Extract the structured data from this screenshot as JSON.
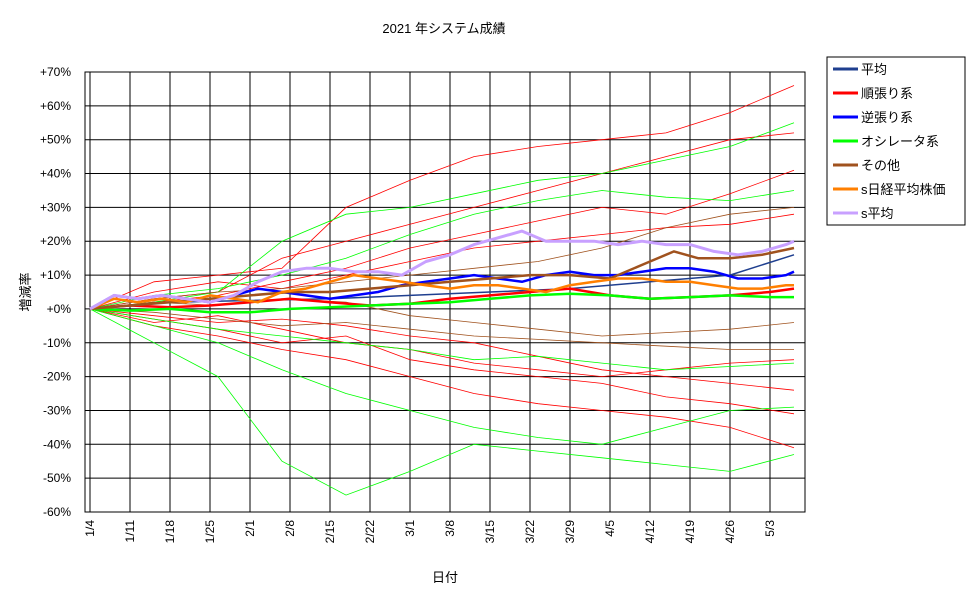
{
  "chart_data": {
    "type": "line",
    "title": "2021 年システム成績",
    "xlabel": "日付",
    "ylabel": "増減率",
    "ylim": [
      -60,
      70
    ],
    "yticks": [
      {
        "value": 70,
        "label": "+70%"
      },
      {
        "value": 60,
        "label": "+60%"
      },
      {
        "value": 50,
        "label": "+50%"
      },
      {
        "value": 40,
        "label": "+40%"
      },
      {
        "value": 30,
        "label": "+30%"
      },
      {
        "value": 20,
        "label": "+20%"
      },
      {
        "value": 10,
        "label": "+10%"
      },
      {
        "value": 0,
        "label": "+0%"
      },
      {
        "value": -10,
        "label": "-10%"
      },
      {
        "value": -20,
        "label": "-20%"
      },
      {
        "value": -30,
        "label": "-30%"
      },
      {
        "value": -40,
        "label": "-40%"
      },
      {
        "value": -50,
        "label": "-50%"
      },
      {
        "value": -60,
        "label": "-60%"
      }
    ],
    "xticks": [
      "1/4",
      "1/11",
      "1/18",
      "1/25",
      "2/1",
      "2/8",
      "2/15",
      "2/22",
      "3/1",
      "3/8",
      "3/15",
      "3/22",
      "3/29",
      "4/5",
      "4/12",
      "4/19",
      "4/26",
      "5/3"
    ],
    "grid": true,
    "legend_position": "right",
    "series": [
      {
        "name": "平均",
        "color": "#1f3f8f",
        "width": 1.5,
        "x": [
          0,
          10,
          20,
          30,
          40,
          50,
          60,
          70,
          80,
          88
        ],
        "values": [
          0,
          2,
          2.5,
          3,
          4,
          5,
          6,
          8,
          10,
          16
        ]
      },
      {
        "name": "順張り系",
        "color": "#ff0000",
        "width": 2.5,
        "x": [
          0,
          5,
          10,
          15,
          20,
          25,
          30,
          35,
          40,
          45,
          50,
          55,
          60,
          65,
          70,
          75,
          80,
          85,
          88
        ],
        "values": [
          0,
          1,
          0.5,
          1,
          2,
          3,
          2,
          1,
          1.5,
          3,
          4,
          5,
          6,
          4,
          3,
          3.5,
          4,
          5,
          6
        ]
      },
      {
        "name": "逆張り系",
        "color": "#0000ff",
        "width": 2.5,
        "x": [
          0,
          3,
          6,
          9,
          12,
          15,
          18,
          21,
          24,
          27,
          30,
          33,
          36,
          39,
          42,
          45,
          48,
          51,
          54,
          57,
          60,
          63,
          66,
          69,
          72,
          75,
          78,
          81,
          84,
          87,
          88
        ],
        "values": [
          0,
          4,
          3,
          4,
          3,
          2,
          4,
          6,
          5,
          4,
          3,
          4,
          5,
          7,
          8,
          9,
          10,
          9,
          8,
          10,
          11,
          10,
          10,
          11,
          12,
          12,
          11,
          9,
          9,
          10,
          11
        ]
      },
      {
        "name": "オシレータ系",
        "color": "#00ff00",
        "width": 2.5,
        "x": [
          0,
          5,
          10,
          15,
          20,
          25,
          30,
          35,
          40,
          45,
          50,
          55,
          60,
          65,
          70,
          75,
          80,
          85,
          88
        ],
        "values": [
          0,
          -0.5,
          0,
          -1,
          -1,
          0,
          0.5,
          1,
          1.5,
          2,
          3,
          4,
          4.5,
          4,
          3,
          3.5,
          4,
          3.5,
          3.5
        ]
      },
      {
        "name": "その他",
        "color": "#a0521e",
        "width": 2.5,
        "x": [
          0,
          5,
          10,
          15,
          20,
          25,
          30,
          35,
          40,
          45,
          50,
          55,
          60,
          65,
          70,
          73,
          76,
          80,
          84,
          88
        ],
        "values": [
          0,
          1,
          2,
          3,
          4,
          5,
          5,
          6,
          7,
          8,
          9,
          10,
          10,
          9,
          14,
          17,
          15,
          15,
          16,
          18
        ]
      },
      {
        "name": "s日経平均株価",
        "color": "#ff7f00",
        "width": 2.5,
        "x": [
          0,
          3,
          6,
          9,
          12,
          15,
          18,
          21,
          24,
          27,
          30,
          33,
          36,
          39,
          42,
          45,
          48,
          51,
          54,
          57,
          60,
          63,
          66,
          69,
          72,
          75,
          78,
          81,
          84,
          87,
          88
        ],
        "values": [
          0,
          3,
          2,
          3,
          2,
          4,
          3,
          2,
          5,
          6,
          8,
          10,
          9,
          8,
          7,
          6,
          7,
          7,
          6,
          5,
          7,
          8,
          9,
          9,
          8,
          8,
          7,
          6,
          6,
          7,
          7
        ]
      },
      {
        "name": "s平均",
        "color": "#c8a0ff",
        "width": 3,
        "x": [
          0,
          3,
          6,
          9,
          12,
          15,
          18,
          21,
          24,
          27,
          30,
          33,
          36,
          39,
          42,
          45,
          48,
          51,
          54,
          57,
          60,
          63,
          66,
          69,
          72,
          75,
          78,
          81,
          84,
          87,
          88
        ],
        "values": [
          0,
          4,
          3,
          4,
          3,
          2,
          4,
          8,
          11,
          12,
          12,
          11,
          11,
          10,
          14,
          16,
          19,
          21,
          23,
          20,
          20,
          20,
          19,
          20,
          19,
          19,
          17,
          16,
          17,
          19,
          20
        ]
      }
    ],
    "background_series": [
      {
        "color": "#ff0000",
        "x": [
          0,
          8,
          16,
          24,
          32,
          40,
          48,
          56,
          64,
          72,
          80,
          88
        ],
        "values": [
          0,
          8,
          10,
          12,
          30,
          38,
          45,
          48,
          50,
          52,
          58,
          66
        ]
      },
      {
        "color": "#ff0000",
        "x": [
          0,
          8,
          16,
          24,
          32,
          40,
          48,
          56,
          64,
          72,
          80,
          88
        ],
        "values": [
          0,
          -5,
          -8,
          -12,
          -15,
          -20,
          -25,
          -28,
          -30,
          -32,
          -35,
          -41
        ]
      },
      {
        "color": "#ff0000",
        "x": [
          0,
          8,
          16,
          24,
          32,
          40,
          48,
          56,
          64,
          72,
          80,
          88
        ],
        "values": [
          0,
          3,
          5,
          15,
          20,
          25,
          30,
          35,
          40,
          45,
          50,
          52
        ]
      },
      {
        "color": "#ff0000",
        "x": [
          0,
          8,
          16,
          24,
          32,
          40,
          48,
          56,
          64,
          72,
          80,
          88
        ],
        "values": [
          0,
          -3,
          -6,
          -10,
          -8,
          -15,
          -18,
          -20,
          -22,
          -26,
          -28,
          -31
        ]
      },
      {
        "color": "#ff0000",
        "x": [
          0,
          8,
          16,
          24,
          32,
          40,
          48,
          56,
          64,
          72,
          80,
          88
        ],
        "values": [
          0,
          2,
          4,
          8,
          12,
          18,
          22,
          26,
          30,
          28,
          34,
          41
        ]
      },
      {
        "color": "#ff0000",
        "x": [
          0,
          8,
          16,
          24,
          32,
          40,
          48,
          56,
          64,
          72,
          80,
          88
        ],
        "values": [
          0,
          -2,
          -4,
          -3,
          -5,
          -8,
          -10,
          -14,
          -18,
          -20,
          -22,
          -24
        ]
      },
      {
        "color": "#ff0000",
        "x": [
          0,
          8,
          16,
          24,
          32,
          40,
          48,
          56,
          64,
          72,
          80,
          88
        ],
        "values": [
          0,
          5,
          8,
          6,
          10,
          14,
          18,
          20,
          22,
          24,
          25,
          28
        ]
      },
      {
        "color": "#ff0000",
        "x": [
          0,
          8,
          16,
          24,
          32,
          40,
          48,
          56,
          64,
          72,
          80,
          88
        ],
        "values": [
          0,
          -4,
          -2,
          -6,
          -10,
          -12,
          -16,
          -18,
          -20,
          -18,
          -16,
          -15
        ]
      },
      {
        "color": "#00ff00",
        "x": [
          0,
          8,
          16,
          24,
          32,
          40,
          48,
          56,
          64,
          72,
          80,
          88
        ],
        "values": [
          0,
          -10,
          -20,
          -45,
          -55,
          -48,
          -40,
          -42,
          -44,
          -46,
          -48,
          -43
        ]
      },
      {
        "color": "#00ff00",
        "x": [
          0,
          8,
          16,
          24,
          32,
          40,
          48,
          56,
          64,
          72,
          80,
          88
        ],
        "values": [
          0,
          2,
          5,
          20,
          28,
          30,
          34,
          38,
          40,
          44,
          48,
          55
        ]
      },
      {
        "color": "#00ff00",
        "x": [
          0,
          8,
          16,
          24,
          32,
          40,
          48,
          56,
          64,
          72,
          80,
          88
        ],
        "values": [
          0,
          -5,
          -10,
          -18,
          -25,
          -30,
          -35,
          -38,
          -40,
          -35,
          -30,
          -29
        ]
      },
      {
        "color": "#00ff00",
        "x": [
          0,
          8,
          16,
          24,
          32,
          40,
          48,
          56,
          64,
          72,
          80,
          88
        ],
        "values": [
          0,
          4,
          6,
          10,
          15,
          22,
          28,
          32,
          35,
          33,
          32,
          35
        ]
      },
      {
        "color": "#00ff00",
        "x": [
          0,
          8,
          16,
          24,
          32,
          40,
          48,
          56,
          64,
          72,
          80,
          88
        ],
        "values": [
          0,
          -3,
          -6,
          -8,
          -10,
          -12,
          -15,
          -14,
          -16,
          -18,
          -17,
          -16
        ]
      },
      {
        "color": "#a0521e",
        "x": [
          0,
          8,
          16,
          24,
          32,
          40,
          48,
          56,
          64,
          72,
          80,
          88
        ],
        "values": [
          0,
          2,
          1,
          3,
          2,
          -2,
          -4,
          -6,
          -8,
          -7,
          -6,
          -4
        ]
      },
      {
        "color": "#a0521e",
        "x": [
          0,
          8,
          16,
          24,
          32,
          40,
          48,
          56,
          64,
          72,
          80,
          88
        ],
        "values": [
          0,
          3,
          5,
          6,
          8,
          10,
          12,
          14,
          18,
          24,
          28,
          30
        ]
      },
      {
        "color": "#a0521e",
        "x": [
          0,
          8,
          16,
          24,
          32,
          40,
          48,
          56,
          64,
          72,
          80,
          88
        ],
        "values": [
          0,
          -1,
          -3,
          -5,
          -4,
          -6,
          -8,
          -9,
          -10,
          -11,
          -12,
          -12
        ]
      }
    ]
  }
}
